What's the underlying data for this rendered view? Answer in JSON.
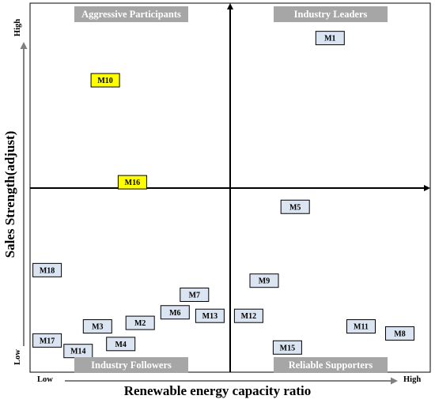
{
  "chart_data": {
    "type": "scatter",
    "title": "",
    "xlabel": "Renewable energy capacity ratio",
    "ylabel": "Sales Strength(adjust)",
    "x_low_label": "Low",
    "x_high_label": "High",
    "y_low_label": "Low",
    "y_high_label": "High",
    "xlim": [
      0,
      1
    ],
    "ylim": [
      0,
      1
    ],
    "grid": false,
    "quadrants": {
      "top_left": "Aggressive Participants",
      "top_right": "Industry Leaders",
      "bottom_left": "Industry Followers",
      "bottom_right": "Reliable Supporters"
    },
    "points": [
      {
        "label": "M1",
        "x": 0.77,
        "y": 0.93,
        "highlight": false
      },
      {
        "label": "M2",
        "x": 0.28,
        "y": 0.12,
        "highlight": false
      },
      {
        "label": "M3",
        "x": 0.17,
        "y": 0.11,
        "highlight": false
      },
      {
        "label": "M4",
        "x": 0.23,
        "y": 0.06,
        "highlight": false
      },
      {
        "label": "M5",
        "x": 0.68,
        "y": 0.45,
        "highlight": false
      },
      {
        "label": "M6",
        "x": 0.37,
        "y": 0.15,
        "highlight": false
      },
      {
        "label": "M7",
        "x": 0.42,
        "y": 0.2,
        "highlight": false
      },
      {
        "label": "M8",
        "x": 0.95,
        "y": 0.09,
        "highlight": false
      },
      {
        "label": "M9",
        "x": 0.6,
        "y": 0.24,
        "highlight": false
      },
      {
        "label": "M10",
        "x": 0.19,
        "y": 0.81,
        "highlight": true
      },
      {
        "label": "M11",
        "x": 0.85,
        "y": 0.11,
        "highlight": false
      },
      {
        "label": "M12",
        "x": 0.56,
        "y": 0.14,
        "highlight": false
      },
      {
        "label": "M13",
        "x": 0.46,
        "y": 0.14,
        "highlight": false
      },
      {
        "label": "M14",
        "x": 0.12,
        "y": 0.04,
        "highlight": false
      },
      {
        "label": "M15",
        "x": 0.66,
        "y": 0.05,
        "highlight": false
      },
      {
        "label": "M16",
        "x": 0.26,
        "y": 0.52,
        "highlight": true
      },
      {
        "label": "M17",
        "x": 0.04,
        "y": 0.07,
        "highlight": false
      },
      {
        "label": "M18",
        "x": 0.04,
        "y": 0.27,
        "highlight": false
      }
    ],
    "colors": {
      "box_fill": "#dbe5f1",
      "highlight_fill": "#ffff00",
      "quadrant_label_bg": "#a6a6a6",
      "arrow": "#808080"
    }
  }
}
